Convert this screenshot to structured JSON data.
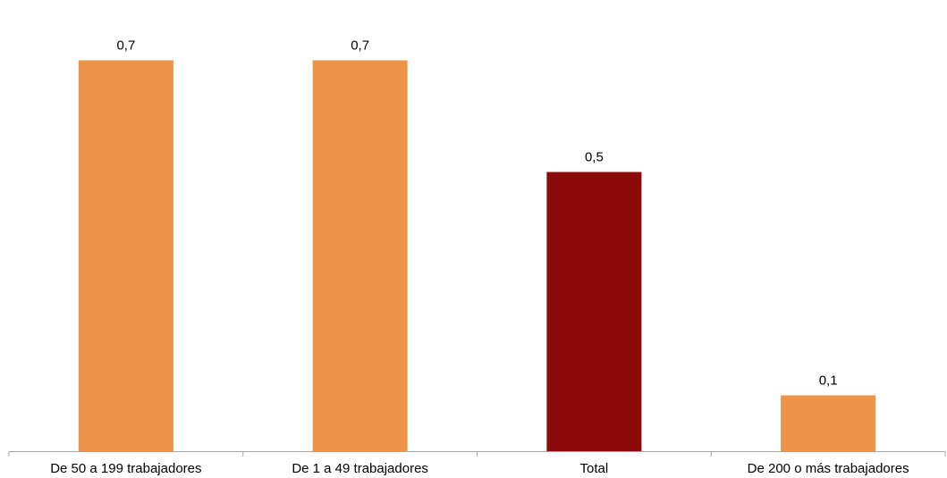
{
  "chart_data": {
    "type": "bar",
    "categories": [
      "De 50 a 199 trabajadores",
      "De 1 a 49 trabajadores",
      "Total",
      "De 200 o más trabajadores"
    ],
    "values": [
      0.7,
      0.7,
      0.5,
      0.1
    ],
    "data_labels": [
      "0,7",
      "0,7",
      "0,5",
      "0,1"
    ],
    "highlight_index": 2,
    "colors": {
      "bar": "#ED9448",
      "highlight": "#8B0A0A",
      "axis": "#A6A6A6",
      "text": "#000000"
    },
    "ylim": [
      0,
      0.8
    ],
    "grid": false,
    "legend": "none"
  }
}
